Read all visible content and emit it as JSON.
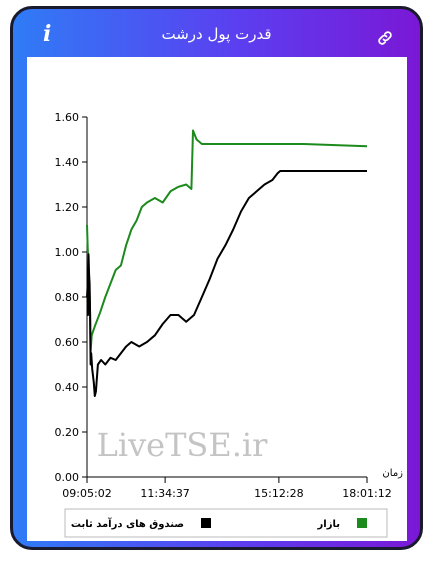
{
  "header": {
    "title": "قدرت پول درشت",
    "info_icon": "info-icon",
    "link_icon": "link-icon"
  },
  "watermark": "LiveTSE.ir",
  "chart_data": {
    "type": "line",
    "xlabel": "زمان",
    "ylabel": "",
    "ylim": [
      0,
      1.6
    ],
    "y_ticks": [
      "0.00",
      "0.20",
      "0.40",
      "0.60",
      "0.80",
      "1.00",
      "1.20",
      "1.40",
      "1.60"
    ],
    "x_ticks": [
      "09:05:02",
      "11:34:37",
      "15:12:28",
      "18:01:12"
    ],
    "grid": false,
    "legend_position": "bottom",
    "x_units": "time of day",
    "x_range": [
      "09:05:02",
      "18:01:12"
    ],
    "series": [
      {
        "name": "بازار",
        "color": "#1c8a1c",
        "points": [
          [
            "09:05:02",
            1.12
          ],
          [
            "09:07:00",
            0.98
          ],
          [
            "09:09:00",
            0.86
          ],
          [
            "09:10:30",
            0.78
          ],
          [
            "09:12:00",
            0.56
          ],
          [
            "09:14:00",
            0.63
          ],
          [
            "09:20:00",
            0.67
          ],
          [
            "09:30:00",
            0.73
          ],
          [
            "09:40:00",
            0.8
          ],
          [
            "09:50:00",
            0.86
          ],
          [
            "10:00:00",
            0.92
          ],
          [
            "10:10:00",
            0.94
          ],
          [
            "10:20:00",
            1.03
          ],
          [
            "10:30:00",
            1.1
          ],
          [
            "10:40:00",
            1.14
          ],
          [
            "10:50:00",
            1.2
          ],
          [
            "11:00:00",
            1.22
          ],
          [
            "11:15:00",
            1.24
          ],
          [
            "11:30:00",
            1.22
          ],
          [
            "11:45:00",
            1.27
          ],
          [
            "12:00:00",
            1.29
          ],
          [
            "12:15:00",
            1.3
          ],
          [
            "12:25:00",
            1.28
          ],
          [
            "12:28:00",
            1.54
          ],
          [
            "12:35:00",
            1.5
          ],
          [
            "12:45:00",
            1.48
          ],
          [
            "14:00:00",
            1.48
          ],
          [
            "16:00:00",
            1.48
          ],
          [
            "18:01:12",
            1.47
          ]
        ]
      },
      {
        "name": "صندوق های درآمد ثابت",
        "color": "#000000",
        "points": [
          [
            "09:05:02",
            0.8
          ],
          [
            "09:06:00",
            0.84
          ],
          [
            "09:07:00",
            0.72
          ],
          [
            "09:08:00",
            0.99
          ],
          [
            "09:09:00",
            0.9
          ],
          [
            "09:10:00",
            0.86
          ],
          [
            "09:11:00",
            0.72
          ],
          [
            "09:12:00",
            0.5
          ],
          [
            "09:13:00",
            0.55
          ],
          [
            "09:15:00",
            0.48
          ],
          [
            "09:18:00",
            0.42
          ],
          [
            "09:20:00",
            0.36
          ],
          [
            "09:22:00",
            0.38
          ],
          [
            "09:26:00",
            0.5
          ],
          [
            "09:32:00",
            0.52
          ],
          [
            "09:40:00",
            0.5
          ],
          [
            "09:50:00",
            0.53
          ],
          [
            "10:00:00",
            0.52
          ],
          [
            "10:10:00",
            0.55
          ],
          [
            "10:20:00",
            0.58
          ],
          [
            "10:30:00",
            0.6
          ],
          [
            "10:45:00",
            0.58
          ],
          [
            "11:00:00",
            0.6
          ],
          [
            "11:15:00",
            0.63
          ],
          [
            "11:30:00",
            0.68
          ],
          [
            "11:45:00",
            0.72
          ],
          [
            "12:00:00",
            0.72
          ],
          [
            "12:15:00",
            0.69
          ],
          [
            "12:30:00",
            0.72
          ],
          [
            "12:45:00",
            0.8
          ],
          [
            "13:00:00",
            0.88
          ],
          [
            "13:15:00",
            0.97
          ],
          [
            "13:30:00",
            1.03
          ],
          [
            "13:45:00",
            1.1
          ],
          [
            "14:00:00",
            1.18
          ],
          [
            "14:15:00",
            1.24
          ],
          [
            "14:30:00",
            1.27
          ],
          [
            "14:45:00",
            1.3
          ],
          [
            "15:00:00",
            1.32
          ],
          [
            "15:10:00",
            1.35
          ],
          [
            "15:15:00",
            1.36
          ],
          [
            "16:00:00",
            1.36
          ],
          [
            "17:00:00",
            1.36
          ],
          [
            "18:01:12",
            1.36
          ]
        ]
      }
    ]
  }
}
